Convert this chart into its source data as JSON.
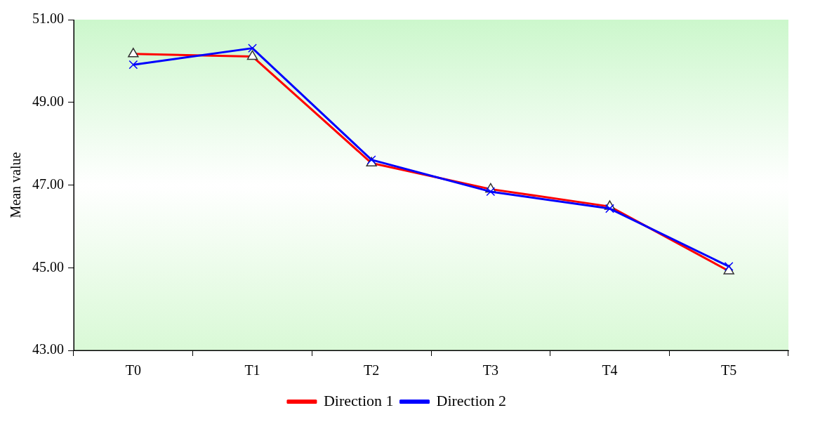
{
  "chart_data": {
    "type": "line",
    "ylabel": "Mean value",
    "categories": [
      "T0",
      "T1",
      "T2",
      "T3",
      "T4",
      "T5"
    ],
    "series": [
      {
        "name": "Direction 1",
        "color": "#ff0000",
        "marker": "triangle",
        "values": [
          50.17,
          50.11,
          47.53,
          46.9,
          46.48,
          44.92
        ]
      },
      {
        "name": "Direction 2",
        "color": "#0000ff",
        "marker": "cross",
        "values": [
          49.91,
          50.31,
          47.61,
          46.84,
          46.43,
          45.03
        ]
      }
    ],
    "ylim": [
      43,
      51
    ],
    "yticks": [
      {
        "value": 43,
        "label": "43.00"
      },
      {
        "value": 45,
        "label": "45.00"
      },
      {
        "value": 47,
        "label": "47.00"
      },
      {
        "value": 49,
        "label": "49.00"
      },
      {
        "value": 51,
        "label": "51.00"
      }
    ],
    "grid": false,
    "legend": "bottom",
    "line_style": "solid"
  }
}
